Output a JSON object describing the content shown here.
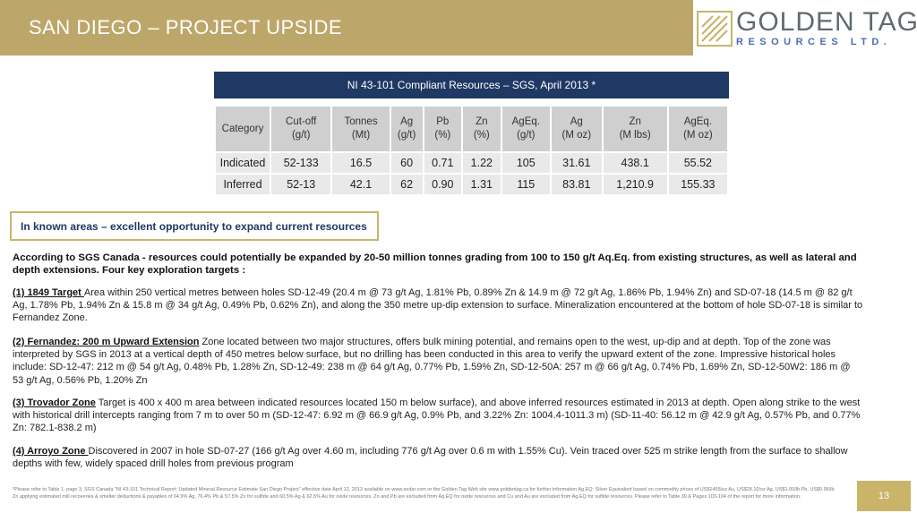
{
  "header": {
    "title": "SAN DIEGO – PROJECT UPSIDE"
  },
  "logo": {
    "name": "GOLDEN TAG",
    "sub": "RESOURCES LTD.",
    "icon": "golden-tag-logo-mark"
  },
  "resources_table": {
    "title": "NI 43-101 Compliant Resources – SGS, April 2013 *",
    "headers": [
      "Category",
      "Cut-off\n(g/t)",
      "Tonnes\n(Mt)",
      "Ag\n(g/t)",
      "Pb\n(%)",
      "Zn\n(%)",
      "AgEq.\n(g/t)",
      "Ag\n(M oz)",
      "Zn\n(M lbs)",
      "AgEq.\n(M oz)"
    ],
    "rows": [
      [
        "Indicated",
        "52-133",
        "16.5",
        "60",
        "0.71",
        "1.22",
        "105",
        "31.61",
        "438.1",
        "55.52"
      ],
      [
        "Inferred",
        "52-13",
        "42.1",
        "62",
        "0.90",
        "1.31",
        "115",
        "83.81",
        "1,210.9",
        "155.33"
      ]
    ]
  },
  "callout": "In known areas – excellent opportunity to expand current resources",
  "lead": "According to SGS Canada - resources could potentially be expanded by 20-50 million tonnes grading from 100 to 150 g/t Aq.Eq. from existing structures, as well as lateral and depth extensions.  Four key exploration targets :",
  "targets": [
    {
      "label": "(1) 1849 Target ",
      "text": "Area within 250 vertical metres between holes SD-12-49 (20.4 m @ 73 g/t Ag, 1.81% Pb, 0.89% Zn & 14.9 m @ 72 g/t Ag, 1.86% Pb, 1.94% Zn) and SD-07-18 (14.5 m @ 82 g/t Ag, 1.78% Pb, 1.94% Zn & 15.8 m @ 34 g/t Ag, 0.49% Pb, 0.62% Zn), and along the 350 metre up-dip extension to surface. Mineralization encountered at the bottom of hole SD-07-18 is similar to Fernandez Zone."
    },
    {
      "label": "(2) Fernandez: 200 m Upward Extension",
      "text": "  Zone located between two major structures, offers bulk mining potential, and remains open to the west, up-dip and at depth.  Top of the zone was interpreted by SGS in 2013 at a vertical depth of 450 metres below surface, but no drilling has been conducted in this area to verify the upward extent of the zone. Impressive historical holes include:  SD-12-47: 212 m @ 54 g/t Ag, 0.48% Pb, 1.28% Zn, SD-12-49: 238 m @ 64 g/t Ag, 0.77% Pb, 1.59% Zn, SD-12-50A: 257 m @ 66 g/t Ag, 0.74% Pb, 1.69% Zn, SD-12-50W2: 186 m @ 53 g/t Ag, 0.56% Pb, 1.20% Zn"
    },
    {
      "label": "(3) Trovador Zone",
      "text": " Target is 400 x 400 m area between indicated resources located 150 m below surface), and above inferred resources estimated in 2013 at depth. Open along strike to the west with historical drill intercepts ranging from 7 m to over 50 m (SD-12-47: 6.92 m @ 66.9 g/t Ag, 0.9% Pb, and 3.22% Zn: 1004.4-1011.3 m) (SD-11-40: 56.12 m @ 42.9 g/t Ag, 0.57% Pb, and 0.77% Zn: 782.1-838.2 m)"
    },
    {
      "label": "(4) Arroyo Zone ",
      "text": "Discovered in 2007 in hole SD-07-27 (166 g/t Ag over 4.60 m, including 776 g/t Ag over 0.6 m with 1.55% Cu). Vein traced over 525 m strike length from the surface to shallow depths with few, widely spaced drill holes from previous program"
    }
  ],
  "footnote": "*Please refer to Table 1, page 3, SGS Canada \"NI 43-101 Technical Report: Updated Mineral Resource Estimate San Diego Project\" effective date April 12, 2013 available on www.sedar.com or the Golden Tag Web site www.goldentag.ca for further information Ag.EQ: Silver Equivalent based on commodity prices of US$1455/oz Au, US$28.10/oz Ag, US$1.00/lb Pb, US$0.96/lb Zn applying estimated mill recoveries & smelter deductions & payables of 64.9% Ag, 76.4% Pb & 57.5% Zn for sulfide and 60.5% Ag & 62.5% Au for oxide resources. Zn and Pb are excluded from Ag.EQ for oxide resources and Cu and Au are excluded from Ag.EQ for sulfide resources. Please refer to Table 30 & Pages 103-104 of the report for more information.",
  "page_number": "13",
  "colors": {
    "gold": "#bda66a",
    "navy": "#1f3864",
    "logo_blue": "#4b6fb3"
  }
}
